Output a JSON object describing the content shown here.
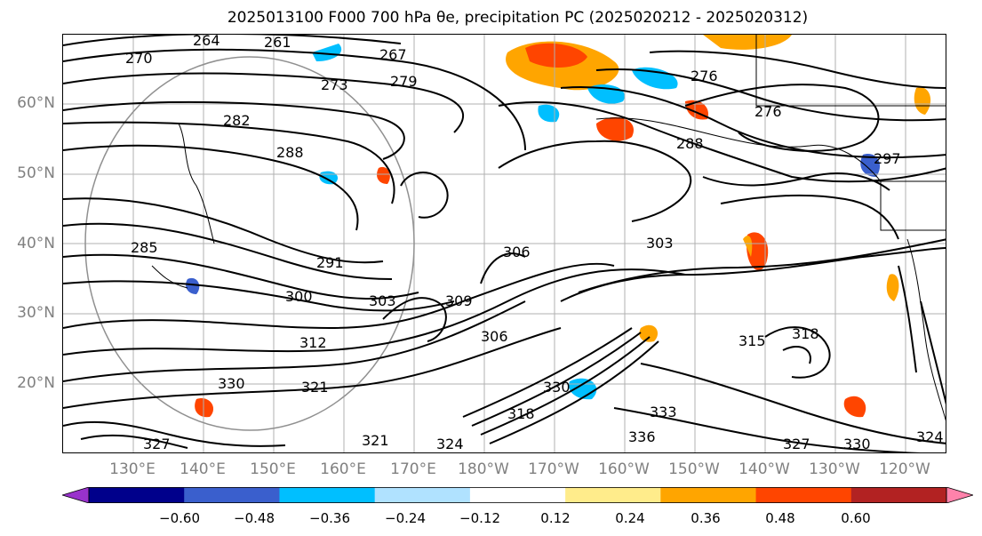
{
  "title": "2025013100 F000 700 hPa θe, precipitation PC (2025020212 - 2025020312)",
  "map": {
    "lat_labels": [
      "60°N",
      "50°N",
      "40°N",
      "30°N",
      "20°N"
    ],
    "lon_labels": [
      "130°E",
      "140°E",
      "150°E",
      "160°E",
      "170°E",
      "180°W",
      "170°W",
      "160°W",
      "150°W",
      "140°W",
      "130°W",
      "120°W"
    ],
    "contour_labels": [
      "264",
      "261",
      "270",
      "267",
      "273",
      "279",
      "276",
      "282",
      "288",
      "276",
      "288",
      "297",
      "285",
      "291",
      "300",
      "303",
      "303",
      "309",
      "306",
      "306",
      "312",
      "315",
      "318",
      "321",
      "330",
      "330",
      "333",
      "336",
      "321",
      "318",
      "324",
      "327",
      "330",
      "327",
      "324"
    ],
    "contour_color": "#000000",
    "gridline_color": "#b0b0b0"
  },
  "colorbar": {
    "colors": [
      "#9932cc",
      "#00008b",
      "#3a5fcd",
      "#00bfff",
      "#b0e2ff",
      "#ffffff",
      "#ffec8b",
      "#ffa500",
      "#ff4500",
      "#b22222",
      "#ff82ab"
    ],
    "tick_labels": [
      "−0.60",
      "−0.48",
      "−0.36",
      "−0.24",
      "−0.12",
      "0.12",
      "0.24",
      "0.36",
      "0.48",
      "0.60"
    ]
  }
}
